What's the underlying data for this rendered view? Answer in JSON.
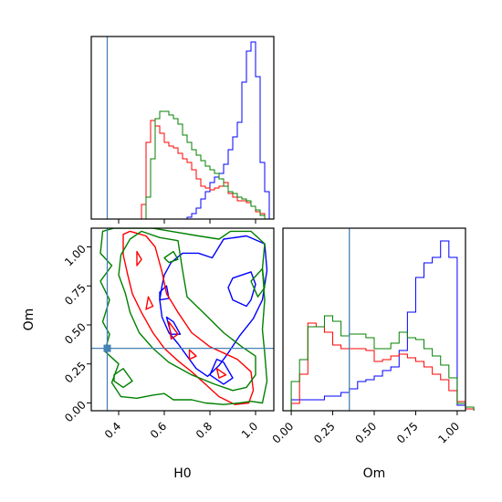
{
  "chart_data": {
    "type": "corner",
    "parameters": [
      "H0",
      "Om"
    ],
    "truths": {
      "H0": 0.35,
      "Om": 0.35
    },
    "colors": {
      "blue": "#0000ff",
      "red": "#ff0000",
      "green": "#008000",
      "truth": "#4682b4"
    },
    "panels": [
      {
        "id": "hist-H0",
        "type": "histogram",
        "xlabel": "",
        "xlim": [
          0.28,
          1.08
        ],
        "ylim": [
          0,
          1.0
        ],
        "xticks": [
          0.4,
          0.6,
          0.8,
          1.0
        ],
        "bins": [
          0.32,
          0.34,
          0.36,
          0.38,
          0.4,
          0.42,
          0.44,
          0.46,
          0.48,
          0.5,
          0.52,
          0.54,
          0.56,
          0.58,
          0.6,
          0.62,
          0.64,
          0.66,
          0.68,
          0.7,
          0.72,
          0.74,
          0.76,
          0.78,
          0.8,
          0.82,
          0.84,
          0.86,
          0.88,
          0.9,
          0.92,
          0.94,
          0.96,
          0.98,
          1.0,
          1.02,
          1.04
        ],
        "series": [
          {
            "color": "blue",
            "values": [
              0,
              0,
              0,
              0,
              0,
              0,
              0,
              0,
              0,
              0,
              0,
              0,
              0,
              0,
              0,
              0,
              0,
              0,
              0,
              0.01,
              0.03,
              0.06,
              0.11,
              0.15,
              0.2,
              0.23,
              0.25,
              0.3,
              0.38,
              0.45,
              0.53,
              0.75,
              0.92,
              0.97,
              0.78,
              0.31,
              0.15
            ]
          },
          {
            "color": "red",
            "values": [
              0,
              0,
              0,
              0,
              0,
              0,
              0,
              0,
              0,
              0.08,
              0.42,
              0.54,
              0.51,
              0.47,
              0.42,
              0.4,
              0.39,
              0.36,
              0.33,
              0.31,
              0.27,
              0.22,
              0.18,
              0.17,
              0.16,
              0.17,
              0.18,
              0.2,
              0.14,
              0.12,
              0.1,
              0.1,
              0.09,
              0.07,
              0.04,
              0.03,
              0.0
            ]
          },
          {
            "color": "green",
            "values": [
              0,
              0,
              0,
              0,
              0,
              0,
              0,
              0,
              0,
              0,
              0.12,
              0.33,
              0.55,
              0.59,
              0.59,
              0.57,
              0.55,
              0.52,
              0.46,
              0.42,
              0.38,
              0.35,
              0.32,
              0.29,
              0.27,
              0.25,
              0.22,
              0.18,
              0.15,
              0.14,
              0.12,
              0.11,
              0.1,
              0.07,
              0.05,
              0.02,
              0.0
            ]
          }
        ]
      },
      {
        "id": "hist-Om",
        "type": "histogram",
        "xlabel": "Om",
        "xlim": [
          -0.05,
          1.05
        ],
        "ylim": [
          0,
          1.0
        ],
        "xticks": [
          0.0,
          0.25,
          0.5,
          0.75,
          1.0
        ],
        "xtick_labels": [
          "0.00",
          "0.25",
          "0.50",
          "0.75",
          "1.00"
        ],
        "bins": [
          0.0,
          0.05,
          0.1,
          0.15,
          0.2,
          0.25,
          0.3,
          0.35,
          0.4,
          0.45,
          0.5,
          0.55,
          0.6,
          0.65,
          0.7,
          0.75,
          0.8,
          0.85,
          0.9,
          0.95,
          1.0,
          1.05
        ],
        "series": [
          {
            "color": "blue",
            "values": [
              0.06,
              0.06,
              0.06,
              0.06,
              0.08,
              0.08,
              0.1,
              0.12,
              0.16,
              0.17,
              0.19,
              0.22,
              0.24,
              0.33,
              0.54,
              0.73,
              0.81,
              0.84,
              0.93,
              0.84,
              0.03,
              0.01
            ]
          },
          {
            "color": "red",
            "values": [
              0.04,
              0.2,
              0.48,
              0.46,
              0.43,
              0.36,
              0.34,
              0.34,
              0.34,
              0.33,
              0.27,
              0.28,
              0.3,
              0.31,
              0.29,
              0.27,
              0.24,
              0.2,
              0.17,
              0.11,
              0.05,
              0.01
            ]
          },
          {
            "color": "green",
            "values": [
              0.16,
              0.28,
              0.46,
              0.46,
              0.52,
              0.49,
              0.41,
              0.42,
              0.42,
              0.4,
              0.34,
              0.34,
              0.37,
              0.43,
              0.4,
              0.39,
              0.34,
              0.3,
              0.25,
              0.18,
              0.04,
              0.02
            ]
          }
        ]
      },
      {
        "id": "contour-H0-Om",
        "type": "contour",
        "xlabel": "H0",
        "ylabel": "Om",
        "xlim": [
          0.28,
          1.08
        ],
        "ylim": [
          -0.05,
          1.12
        ],
        "xticks": [
          0.4,
          0.6,
          0.8,
          1.0
        ],
        "yticks": [
          0.0,
          0.25,
          0.5,
          0.75,
          1.0
        ],
        "ytick_labels": [
          "0.00",
          "0.25",
          "0.50",
          "0.75",
          "1.00"
        ],
        "contours": [
          {
            "color": "blue",
            "points": [
              [
                0.81,
                0.93
              ],
              [
                0.86,
                1.05
              ],
              [
                0.96,
                1.07
              ],
              [
                1.04,
                1.02
              ],
              [
                1.05,
                0.85
              ],
              [
                1.03,
                0.66
              ],
              [
                0.99,
                0.54
              ],
              [
                0.93,
                0.43
              ],
              [
                0.88,
                0.32
              ],
              [
                0.84,
                0.24
              ],
              [
                0.79,
                0.17
              ],
              [
                0.74,
                0.22
              ],
              [
                0.7,
                0.3
              ],
              [
                0.66,
                0.38
              ],
              [
                0.62,
                0.45
              ],
              [
                0.59,
                0.55
              ],
              [
                0.58,
                0.66
              ],
              [
                0.59,
                0.75
              ],
              [
                0.6,
                0.82
              ],
              [
                0.63,
                0.9
              ],
              [
                0.68,
                0.96
              ],
              [
                0.75,
                0.96
              ]
            ]
          },
          {
            "color": "blue",
            "points": [
              [
                0.9,
                0.8
              ],
              [
                0.98,
                0.84
              ],
              [
                1.0,
                0.76
              ],
              [
                0.98,
                0.66
              ],
              [
                0.96,
                0.62
              ],
              [
                0.9,
                0.66
              ],
              [
                0.88,
                0.74
              ]
            ]
          },
          {
            "color": "blue",
            "points": [
              [
                0.58,
                0.71
              ],
              [
                0.61,
                0.75
              ],
              [
                0.62,
                0.67
              ],
              [
                0.58,
                0.66
              ]
            ]
          },
          {
            "color": "blue",
            "points": [
              [
                0.61,
                0.55
              ],
              [
                0.64,
                0.52
              ],
              [
                0.67,
                0.44
              ],
              [
                0.63,
                0.44
              ]
            ]
          },
          {
            "color": "blue",
            "points": [
              [
                0.83,
                0.28
              ],
              [
                0.86,
                0.26
              ],
              [
                0.9,
                0.16
              ],
              [
                0.86,
                0.12
              ],
              [
                0.8,
                0.18
              ]
            ]
          },
          {
            "color": "red",
            "points": [
              [
                0.45,
                1.1
              ],
              [
                0.52,
                1.07
              ],
              [
                0.56,
                1.0
              ],
              [
                0.59,
                0.84
              ],
              [
                0.61,
                0.7
              ],
              [
                0.66,
                0.58
              ],
              [
                0.72,
                0.45
              ],
              [
                0.8,
                0.36
              ],
              [
                0.92,
                0.28
              ],
              [
                0.98,
                0.2
              ],
              [
                0.99,
                0.08
              ],
              [
                0.97,
                0.0
              ],
              [
                0.91,
                -0.01
              ],
              [
                0.84,
                0.04
              ],
              [
                0.78,
                0.12
              ],
              [
                0.72,
                0.2
              ],
              [
                0.66,
                0.27
              ],
              [
                0.6,
                0.35
              ],
              [
                0.55,
                0.45
              ],
              [
                0.5,
                0.58
              ],
              [
                0.46,
                0.7
              ],
              [
                0.44,
                0.82
              ],
              [
                0.42,
                0.95
              ],
              [
                0.42,
                1.08
              ]
            ]
          },
          {
            "color": "red",
            "points": [
              [
                0.48,
                0.97
              ],
              [
                0.5,
                0.92
              ],
              [
                0.48,
                0.88
              ]
            ]
          },
          {
            "color": "red",
            "points": [
              [
                0.53,
                0.68
              ],
              [
                0.55,
                0.62
              ],
              [
                0.52,
                0.6
              ]
            ]
          },
          {
            "color": "red",
            "points": [
              [
                0.62,
                0.52
              ],
              [
                0.66,
                0.44
              ],
              [
                0.63,
                0.41
              ]
            ]
          },
          {
            "color": "red",
            "points": [
              [
                0.71,
                0.34
              ],
              [
                0.74,
                0.3
              ],
              [
                0.71,
                0.28
              ]
            ]
          },
          {
            "color": "red",
            "points": [
              [
                0.83,
                0.22
              ],
              [
                0.87,
                0.18
              ],
              [
                0.84,
                0.16
              ]
            ]
          },
          {
            "color": "green",
            "points": [
              [
                0.33,
                1.1
              ],
              [
                0.32,
                0.96
              ],
              [
                0.37,
                0.88
              ],
              [
                0.32,
                0.78
              ],
              [
                0.36,
                0.66
              ],
              [
                0.33,
                0.52
              ],
              [
                0.36,
                0.44
              ],
              [
                0.34,
                0.33
              ],
              [
                0.4,
                0.25
              ],
              [
                0.37,
                0.13
              ],
              [
                0.41,
                0.04
              ],
              [
                0.48,
                0.03
              ],
              [
                0.55,
                0.05
              ],
              [
                0.6,
                0.06
              ],
              [
                0.64,
                0.02
              ],
              [
                0.72,
                0.02
              ],
              [
                0.78,
                0.0
              ],
              [
                0.86,
                -0.01
              ],
              [
                0.93,
                0.0
              ],
              [
                0.98,
                0.01
              ],
              [
                1.03,
                0.0
              ],
              [
                1.05,
                0.14
              ],
              [
                1.04,
                0.32
              ],
              [
                1.03,
                0.47
              ],
              [
                1.04,
                0.66
              ],
              [
                1.03,
                0.86
              ],
              [
                1.04,
                1.02
              ],
              [
                0.98,
                1.1
              ],
              [
                0.89,
                1.1
              ],
              [
                0.84,
                1.05
              ],
              [
                0.75,
                1.07
              ],
              [
                0.63,
                1.1
              ],
              [
                0.55,
                1.12
              ],
              [
                0.45,
                1.12
              ],
              [
                0.38,
                1.12
              ]
            ]
          },
          {
            "color": "green",
            "points": [
              [
                0.45,
                1.05
              ],
              [
                0.5,
                1.1
              ],
              [
                0.58,
                1.06
              ],
              [
                0.66,
                1.04
              ],
              [
                0.68,
                0.85
              ],
              [
                0.7,
                0.68
              ],
              [
                0.77,
                0.58
              ],
              [
                0.86,
                0.45
              ],
              [
                0.94,
                0.36
              ],
              [
                1.0,
                0.3
              ],
              [
                1.0,
                0.18
              ],
              [
                0.96,
                0.1
              ],
              [
                0.9,
                0.08
              ],
              [
                0.82,
                0.12
              ],
              [
                0.72,
                0.18
              ],
              [
                0.62,
                0.26
              ],
              [
                0.55,
                0.35
              ],
              [
                0.49,
                0.45
              ],
              [
                0.45,
                0.58
              ],
              [
                0.43,
                0.7
              ],
              [
                0.4,
                0.82
              ],
              [
                0.41,
                0.95
              ]
            ]
          },
          {
            "color": "green",
            "points": [
              [
                0.38,
                0.18
              ],
              [
                0.42,
                0.22
              ],
              [
                0.46,
                0.14
              ],
              [
                0.42,
                0.1
              ],
              [
                0.38,
                0.14
              ]
            ]
          },
          {
            "color": "green",
            "points": [
              [
                0.6,
                0.93
              ],
              [
                0.64,
                0.97
              ],
              [
                0.66,
                0.92
              ],
              [
                0.62,
                0.9
              ]
            ]
          },
          {
            "color": "green",
            "points": [
              [
                0.98,
                0.78
              ],
              [
                1.03,
                0.86
              ],
              [
                1.04,
                0.74
              ],
              [
                1.01,
                0.68
              ]
            ]
          }
        ]
      }
    ]
  }
}
